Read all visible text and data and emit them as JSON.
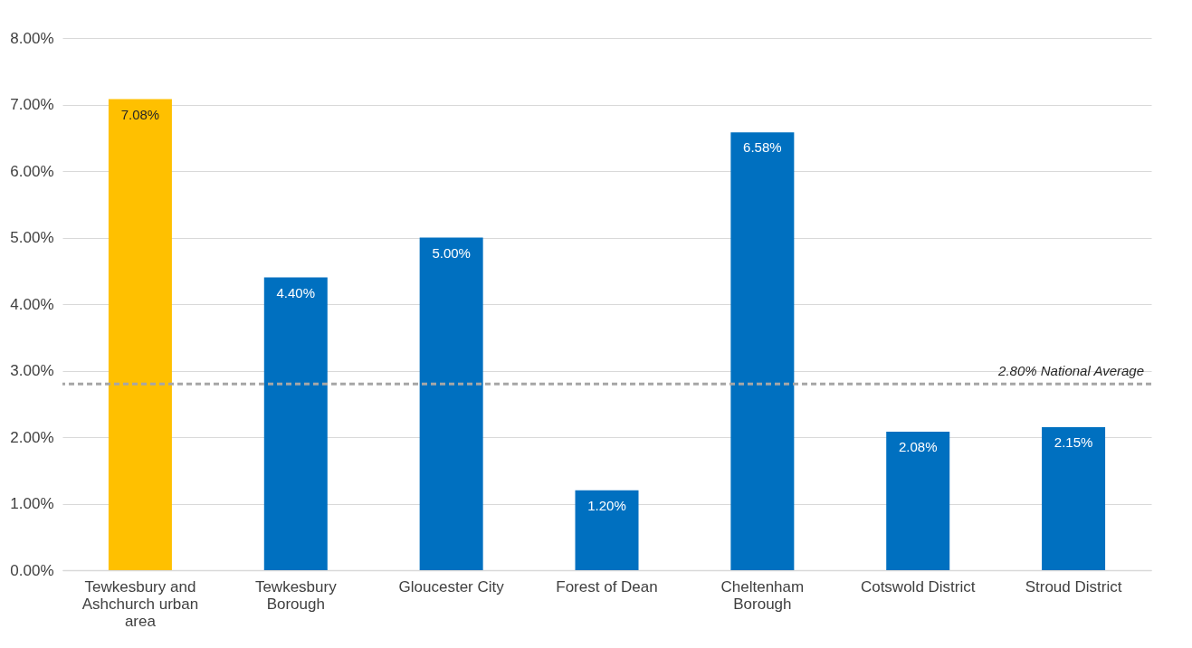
{
  "chart_data": {
    "type": "bar",
    "categories": [
      "Tewkesbury and Ashchurch urban area",
      "Tewkesbury Borough",
      "Gloucester City",
      "Forest of Dean",
      "Cheltenham Borough",
      "Cotswold District",
      "Stroud District"
    ],
    "values": [
      7.08,
      4.4,
      5.0,
      1.2,
      6.58,
      2.08,
      2.15
    ],
    "colors": [
      "#ffc000",
      "#0070c0",
      "#0070c0",
      "#0070c0",
      "#0070c0",
      "#0070c0",
      "#0070c0"
    ],
    "value_labels": [
      "7.08%",
      "4.40%",
      "5.00%",
      "1.20%",
      "6.58%",
      "2.08%",
      "2.15%"
    ],
    "ylim": [
      0,
      8
    ],
    "yticks": [
      {
        "value": 0,
        "label": "0.00%"
      },
      {
        "value": 1,
        "label": "1.00%"
      },
      {
        "value": 2,
        "label": "2.00%"
      },
      {
        "value": 3,
        "label": "3.00%"
      },
      {
        "value": 4,
        "label": "4.00%"
      },
      {
        "value": 5,
        "label": "5.00%"
      },
      {
        "value": 6,
        "label": "6.00%"
      },
      {
        "value": 7,
        "label": "7.00%"
      },
      {
        "value": 8,
        "label": "8.00%"
      }
    ],
    "grid": "y",
    "ref_lines": [
      {
        "axis": "y",
        "value": 2.8,
        "label": "2.80% National Average",
        "color": "#a6a6a6",
        "line_style": "dashed"
      }
    ]
  }
}
